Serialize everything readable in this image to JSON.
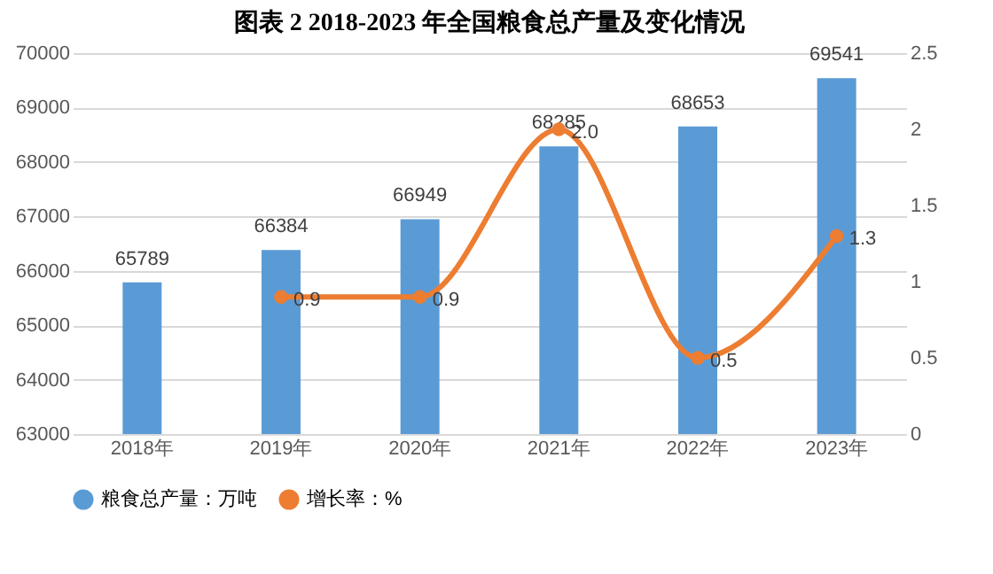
{
  "chart_data": {
    "type": "bar",
    "title": "图表 2    2018-2023 年全国粮食总产量及变化情况",
    "categories": [
      "2018年",
      "2019年",
      "2020年",
      "2021年",
      "2022年",
      "2023年"
    ],
    "series": [
      {
        "name": "粮食总产量：万吨",
        "color": "#5b9bd5",
        "values": [
          65789,
          66384,
          66949,
          68285,
          68653,
          69541
        ]
      },
      {
        "name": "增长率：%",
        "type": "line",
        "axis": "y2",
        "color": "#ed7d31",
        "values": [
          null,
          0.9,
          0.9,
          2.0,
          0.5,
          1.3
        ],
        "value_labels": [
          null,
          "0.9",
          "0.9",
          "2.0",
          "0.5",
          "1.3"
        ]
      }
    ],
    "ylim": [
      63000,
      70000
    ],
    "yticks": [
      63000,
      64000,
      65000,
      66000,
      67000,
      68000,
      69000,
      70000
    ],
    "y2lim": [
      0,
      2.5
    ],
    "y2ticks": [
      0,
      0.5,
      1,
      1.5,
      2,
      2.5
    ],
    "grid": "y",
    "legend": "bottom",
    "marker": "circle",
    "line_style": "solid",
    "data_labels": true
  }
}
